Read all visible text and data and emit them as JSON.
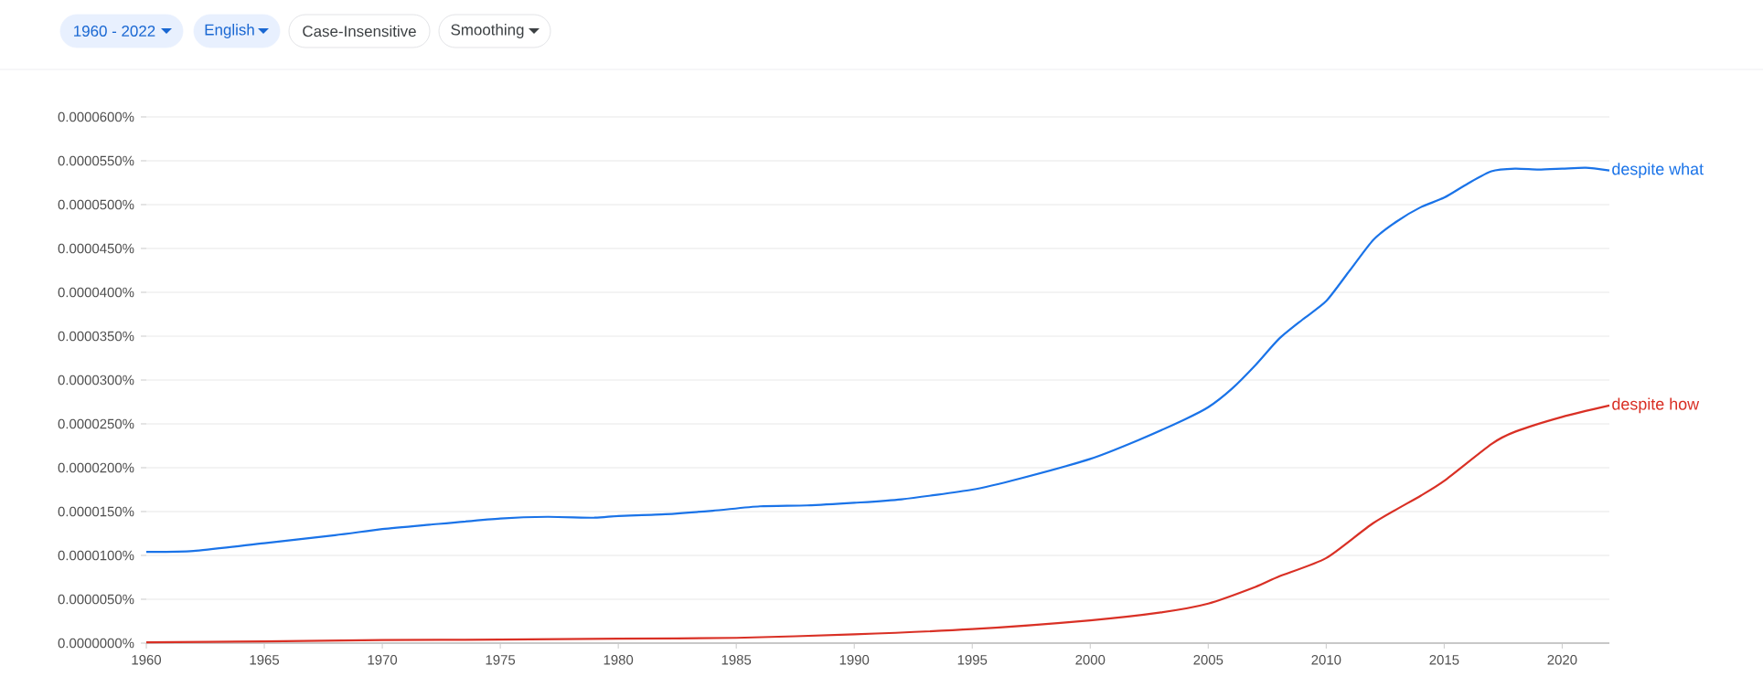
{
  "chart_data": {
    "type": "line",
    "annotations": [
      "1960 - 2022",
      "English",
      "Case-Insensitive",
      "Smoothing"
    ],
    "x": [
      1960,
      1962,
      1965,
      1968,
      1970,
      1972,
      1975,
      1977,
      1979,
      1980,
      1982,
      1984,
      1986,
      1988,
      1990,
      1992,
      1995,
      1997,
      2000,
      2002,
      2004,
      2005,
      2006,
      2007,
      2008,
      2009,
      2010,
      2011,
      2012,
      2013,
      2014,
      2015,
      2016,
      2017,
      2018,
      2019,
      2020,
      2021,
      2022
    ],
    "series": [
      {
        "name": "despite what",
        "color": "#1a73e8",
        "values": [
          1.04e-05,
          1.05e-05,
          1.14e-05,
          1.23e-05,
          1.3e-05,
          1.35e-05,
          1.42e-05,
          1.44e-05,
          1.43e-05,
          1.45e-05,
          1.47e-05,
          1.51e-05,
          1.56e-05,
          1.57e-05,
          1.6e-05,
          1.64e-05,
          1.75e-05,
          1.875e-05,
          2.1e-05,
          2.31e-05,
          2.55e-05,
          2.69e-05,
          2.9e-05,
          3.17e-05,
          3.47e-05,
          3.69e-05,
          3.9e-05,
          4.25e-05,
          4.6e-05,
          4.81e-05,
          4.97e-05,
          5.08e-05,
          5.24e-05,
          5.38e-05,
          5.41e-05,
          5.4e-05,
          5.41e-05,
          5.42e-05,
          5.39e-05
        ]
      },
      {
        "name": "despite how",
        "color": "#d93025",
        "x": [
          1960,
          1965,
          1970,
          1975,
          1980,
          1985,
          1990,
          1995,
          2000,
          2003,
          2005,
          2007,
          2008,
          2010,
          2012,
          2014,
          2015,
          2017,
          2018,
          2020,
          2022
        ],
        "values": [
          1e-07,
          2e-07,
          3.5e-07,
          4e-07,
          5e-07,
          6e-07,
          1e-06,
          1.6e-06,
          2.6e-06,
          3.5e-06,
          4.5e-06,
          6.4e-06,
          7.6e-06,
          9.7e-06,
          1.37e-05,
          1.68e-05,
          1.85e-05,
          2.27e-05,
          2.41e-05,
          2.58e-05,
          2.71e-05
        ]
      }
    ],
    "xlim": [
      1960,
      2022
    ],
    "xticks": [
      1960,
      1965,
      1970,
      1975,
      1980,
      1985,
      1990,
      1995,
      2000,
      2005,
      2010,
      2015,
      2020
    ],
    "ylim": [
      0,
      6e-05
    ],
    "yticks": [
      {
        "value": 0,
        "label": "0.0000000%"
      },
      {
        "value": 5e-06,
        "label": "0.0000050%"
      },
      {
        "value": 1e-05,
        "label": "0.0000100%"
      },
      {
        "value": 1.5e-05,
        "label": "0.0000150%"
      },
      {
        "value": 2e-05,
        "label": "0.0000200%"
      },
      {
        "value": 2.5e-05,
        "label": "0.0000250%"
      },
      {
        "value": 3e-05,
        "label": "0.0000300%"
      },
      {
        "value": 3.5e-05,
        "label": "0.0000350%"
      },
      {
        "value": 4e-05,
        "label": "0.0000400%"
      },
      {
        "value": 4.5e-05,
        "label": "0.0000450%"
      },
      {
        "value": 5e-05,
        "label": "0.0000500%"
      },
      {
        "value": 5.5e-05,
        "label": "0.0000550%"
      },
      {
        "value": 6e-05,
        "label": "0.0000600%"
      }
    ],
    "grid": "y",
    "legend": false
  }
}
